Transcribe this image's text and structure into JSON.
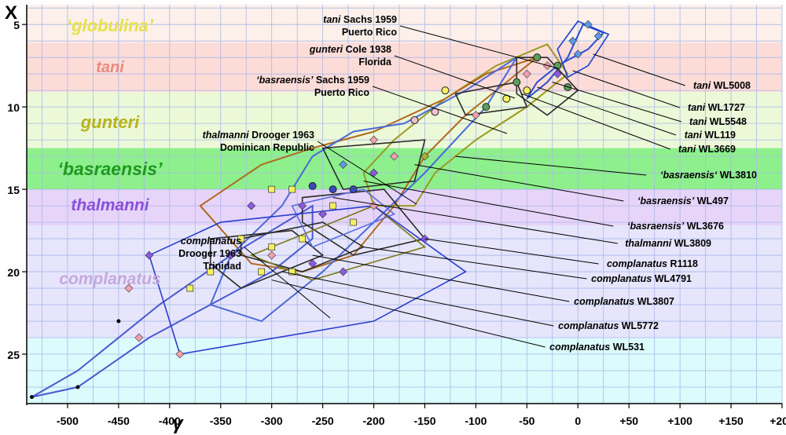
{
  "chart_data": {
    "type": "scatter",
    "xlabel": "γ",
    "ylabel": "X",
    "xlim": [
      -540,
      200
    ],
    "ylim": [
      28,
      3.8
    ],
    "x_tick_labels": [
      "-500",
      "-450",
      "-400",
      "-350",
      "-300",
      "-250",
      "-200",
      "-150",
      "-100",
      "-50",
      "0",
      "+50",
      "+100",
      "+150",
      "+200"
    ],
    "x_tick_values": [
      -500,
      -450,
      -400,
      -350,
      -300,
      -250,
      -200,
      -150,
      -100,
      -50,
      0,
      50,
      100,
      150,
      200
    ],
    "y_tick_labels": [
      "5",
      "10",
      "15",
      "20",
      "25"
    ],
    "y_tick_values": [
      5,
      10,
      15,
      20,
      25
    ],
    "grid": true,
    "bands": [
      {
        "label": "‘globulina’",
        "y_from": 3.8,
        "y_to": 6.1,
        "color": "#fdf0ea",
        "text_color": "#e6e24a"
      },
      {
        "label": "tani",
        "y_from": 6.1,
        "y_to": 9.1,
        "color": "#fddcd8",
        "text_color": "#e88a80"
      },
      {
        "label": "gunteri",
        "y_from": 9.1,
        "y_to": 12.5,
        "color": "#ecf9d8",
        "text_color": "#b7b21e"
      },
      {
        "label": "‘basraensis’",
        "y_from": 12.5,
        "y_to": 15.0,
        "color": "#8df08c",
        "text_color": "#1e9a1e"
      },
      {
        "label": "thalmanni",
        "y_from": 15.0,
        "y_to": 17.2,
        "color": "#e7d4f9",
        "text_color": "#8a4fd8"
      },
      {
        "label": "complanatus",
        "y_from": 17.2,
        "y_to": 24.0,
        "color": "#e7e5fc",
        "text_color": "#c4a9dc"
      },
      {
        "label": "",
        "y_from": 24.0,
        "y_to": 28,
        "color": "#dcfbfc",
        "text_color": "#000000"
      }
    ],
    "reference_populations": [
      {
        "label_italic": "tani",
        "label_rest": " Sachs 1959",
        "label_line2": "Puerto Rico",
        "color": "#2a4fd0",
        "points": [
          [
            5,
            5
          ],
          [
            25,
            5.5
          ],
          [
            10,
            6.5
          ],
          [
            -20,
            7.5
          ],
          [
            -40,
            8.5
          ],
          [
            -50,
            9.5
          ],
          [
            -30,
            8.5
          ],
          [
            -10,
            7
          ],
          [
            5,
            5
          ]
        ],
        "label_anchor": [
          -60,
          8
        ]
      },
      {
        "label_italic": "gunteri",
        "label_rest": " Cole 1938",
        "label_line2": "Florida",
        "color": "#9a9a20",
        "points": [
          [
            -30,
            6.2
          ],
          [
            -10,
            8
          ],
          [
            -50,
            10
          ],
          [
            -100,
            12
          ],
          [
            -140,
            14
          ],
          [
            -160,
            16
          ],
          [
            -200,
            16
          ],
          [
            -210,
            14
          ],
          [
            -180,
            12
          ],
          [
            -130,
            9.5
          ],
          [
            -80,
            7.5
          ],
          [
            -30,
            6.2
          ]
        ],
        "label_anchor": [
          -100,
          9
        ]
      },
      {
        "label_italic": "‘basraensis’",
        "label_rest": " Sachs 1959",
        "label_line2": "Puerto Rico",
        "color": "#b06a20",
        "points": [
          [
            -40,
            7
          ],
          [
            -90,
            8
          ],
          [
            -130,
            9.5
          ],
          [
            -200,
            11.5
          ],
          [
            -260,
            12.5
          ],
          [
            -310,
            13.5
          ],
          [
            -370,
            16
          ],
          [
            -320,
            19.5
          ],
          [
            -270,
            20
          ],
          [
            -220,
            19
          ],
          [
            -180,
            16
          ],
          [
            -150,
            13
          ],
          [
            -110,
            10.5
          ],
          [
            -40,
            7
          ]
        ],
        "label_anchor": [
          -180,
          13
        ]
      },
      {
        "label_italic": "thalmanni",
        "label_rest": " Drooger 1963",
        "label_line2": "Dominican Republic",
        "color": "#4a6ad8",
        "points": [
          [
            -60,
            7
          ],
          [
            -110,
            9
          ],
          [
            -170,
            11
          ],
          [
            -220,
            11.5
          ],
          [
            -260,
            13
          ],
          [
            -290,
            16
          ],
          [
            -340,
            19
          ],
          [
            -360,
            22
          ],
          [
            -310,
            23
          ],
          [
            -250,
            20
          ],
          [
            -200,
            17
          ],
          [
            -150,
            14
          ],
          [
            -90,
            10
          ],
          [
            -60,
            7
          ]
        ],
        "label_anchor": [
          -250,
          14
        ]
      },
      {
        "label_italic": "complanatus",
        "label_rest": "",
        "label_line2": "Drooger 1963",
        "label_line3": "Trinidad",
        "color": "#4a5ad0",
        "points": [
          [
            -260,
            16
          ],
          [
            -340,
            19
          ],
          [
            -410,
            22
          ],
          [
            -490,
            26
          ],
          [
            -535,
            27.6
          ],
          [
            -490,
            27
          ],
          [
            -420,
            24
          ],
          [
            -360,
            22
          ],
          [
            -300,
            20
          ],
          [
            -260,
            18
          ],
          [
            -260,
            16
          ]
        ],
        "label_anchor": [
          -420,
          21
        ]
      }
    ],
    "series_notes": "Coloured convex hulls with dots show samples WL5008, WL1727, WL5548, WL119, WL3669 (tani); WL3810, WL497, WL3676 (basraensis); WL3809 (thalmanni); R1118, WL4791, WL3807, WL5772, WL531 (complanatus)."
  },
  "right_annotations": [
    {
      "italic": "tani",
      "rest": " WL5008",
      "target": [
        15,
        6.8
      ]
    },
    {
      "italic": "tani",
      "rest": " WL1727",
      "target": [
        -5,
        7.8
      ]
    },
    {
      "italic": "tani",
      "rest": " WL5548",
      "target": [
        -25,
        8.5
      ]
    },
    {
      "italic": "tani",
      "rest": " WL119",
      "target": [
        -40,
        8.8
      ]
    },
    {
      "italic": "tani",
      "rest": " WL3669",
      "target": [
        -55,
        9.2
      ]
    },
    {
      "italic": "‘basraensis‘",
      "rest": " WL3810",
      "target": [
        -120,
        13
      ]
    },
    {
      "italic": "‘basraensis’",
      "rest": " WL497",
      "target": [
        -160,
        13.5
      ]
    },
    {
      "italic": "‘basraensis’",
      "rest": " WL3676",
      "target": [
        -210,
        14.5
      ]
    },
    {
      "italic": "thalmanni",
      "rest": " WL3809",
      "target": [
        -240,
        15.5
      ]
    },
    {
      "italic": "complanatus",
      "rest": " R1118",
      "target": [
        -150,
        18
      ]
    },
    {
      "italic": "complanatus",
      "rest": " WL4791",
      "target": [
        -210,
        18.5
      ]
    },
    {
      "italic": "complanatus",
      "rest": " WL3807",
      "target": [
        -260,
        19
      ]
    },
    {
      "italic": "complanatus",
      "rest": " WL5772",
      "target": [
        -290,
        20
      ]
    },
    {
      "italic": "complanatus",
      "rest": " WL531",
      "target": [
        -300,
        20.5
      ]
    }
  ]
}
